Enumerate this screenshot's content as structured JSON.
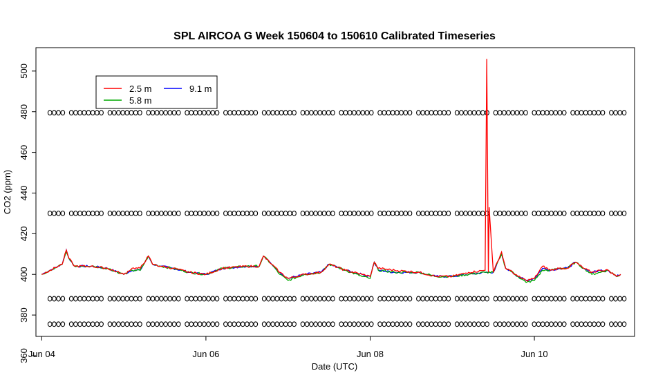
{
  "chart_data": {
    "type": "line",
    "title": "SPL AIRCOA G  Week 150604 to 150610  Calibrated Timeseries",
    "xlabel": "Date (UTC)",
    "ylabel": "CO2 (ppm)",
    "xlim": [
      -0.07,
      7.22
    ],
    "ylim": [
      369.5,
      511.5
    ],
    "x_ticks": [
      {
        "value": 0,
        "label": "Jun 04"
      },
      {
        "value": 2,
        "label": "Jun 06"
      },
      {
        "value": 4,
        "label": "Jun 08"
      },
      {
        "value": 6,
        "label": "Jun 10"
      }
    ],
    "y_ticks": [
      360,
      380,
      400,
      420,
      440,
      460,
      480,
      500
    ],
    "y_tick_labels": [
      "360",
      "380",
      "400",
      "420",
      "440",
      "460",
      "480",
      "500"
    ],
    "x_unit": "days since Jun 04 00:00 UTC",
    "legend": {
      "position": "top-left",
      "entries": [
        {
          "label": "2.5 m",
          "color": "#ff0000"
        },
        {
          "label": "5.8 m",
          "color": "#00aa00"
        },
        {
          "label": "9.1 m",
          "color": "#0000ff"
        }
      ]
    },
    "series": [
      {
        "name": "9.1 m",
        "color": "#0000ff",
        "x": [
          0,
          0.1,
          0.2,
          0.25,
          0.3,
          0.33,
          0.4,
          0.6,
          0.8,
          1.0,
          1.1,
          1.2,
          1.3,
          1.35,
          1.45,
          1.6,
          1.8,
          2.0,
          2.2,
          2.5,
          2.65,
          2.7,
          2.8,
          2.9,
          3.0,
          3.2,
          3.4,
          3.5,
          3.7,
          3.9,
          4.0,
          4.05,
          4.1,
          4.3,
          4.6,
          4.8,
          5.0,
          5.2,
          5.4,
          5.5,
          5.6,
          5.65,
          5.7,
          5.8,
          5.9,
          6.0,
          6.1,
          6.2,
          6.3,
          6.4,
          6.5,
          6.6,
          6.7,
          6.8,
          6.9,
          7.0,
          7.05
        ],
        "y": [
          400,
          402,
          404,
          405,
          412,
          408,
          404,
          404,
          403,
          400,
          402,
          402,
          409,
          405,
          404,
          403,
          401,
          400,
          403,
          404,
          404,
          409,
          405,
          401,
          398,
          400,
          401,
          405,
          402,
          400,
          399,
          406,
          402,
          401,
          401,
          399,
          399,
          400,
          401,
          401,
          410,
          403,
          402,
          399,
          397,
          398,
          403,
          402,
          403,
          403,
          406,
          403,
          401,
          402,
          402,
          399,
          400
        ]
      },
      {
        "name": "5.8 m",
        "color": "#00aa00",
        "x": [
          0,
          0.1,
          0.2,
          0.25,
          0.3,
          0.33,
          0.4,
          0.6,
          0.8,
          1.0,
          1.1,
          1.2,
          1.3,
          1.35,
          1.45,
          1.6,
          1.8,
          2.0,
          2.2,
          2.5,
          2.65,
          2.7,
          2.8,
          2.9,
          3.0,
          3.2,
          3.4,
          3.5,
          3.7,
          3.9,
          4.0,
          4.05,
          4.1,
          4.3,
          4.6,
          4.8,
          5.0,
          5.2,
          5.4,
          5.5,
          5.6,
          5.65,
          5.7,
          5.8,
          5.9,
          6.0,
          6.1,
          6.2,
          6.3,
          6.4,
          6.5,
          6.6,
          6.7,
          6.8,
          6.9,
          7.0,
          7.05
        ],
        "y": [
          400,
          402,
          404,
          405,
          411,
          408,
          404,
          404,
          403,
          400,
          402,
          402,
          409,
          405,
          404,
          403,
          401,
          400,
          403,
          404,
          404,
          409,
          405,
          400,
          397,
          400,
          401,
          405,
          402,
          399,
          398,
          406,
          402,
          401,
          401,
          399,
          399,
          400,
          401,
          401,
          410,
          403,
          402,
          399,
          396,
          397,
          402,
          402,
          403,
          403,
          406,
          403,
          400,
          401,
          402,
          399,
          400
        ]
      },
      {
        "name": "2.5 m",
        "color": "#ff0000",
        "x": [
          0,
          0.1,
          0.2,
          0.25,
          0.3,
          0.33,
          0.4,
          0.6,
          0.8,
          1.0,
          1.1,
          1.2,
          1.3,
          1.35,
          1.45,
          1.6,
          1.8,
          2.0,
          2.2,
          2.5,
          2.65,
          2.7,
          2.8,
          2.9,
          3.0,
          3.2,
          3.4,
          3.5,
          3.7,
          3.9,
          4.0,
          4.05,
          4.1,
          4.3,
          4.6,
          4.8,
          5.0,
          5.2,
          5.4,
          5.42,
          5.44,
          5.45,
          5.47,
          5.5,
          5.6,
          5.65,
          5.7,
          5.8,
          5.9,
          6.0,
          6.1,
          6.2,
          6.3,
          6.4,
          6.5,
          6.6,
          6.7,
          6.8,
          6.9,
          7.0,
          7.05
        ],
        "y": [
          400,
          402,
          404,
          405,
          412,
          408,
          404,
          404,
          403,
          400,
          403,
          403,
          409,
          405,
          404,
          403,
          401,
          400,
          403,
          404,
          404,
          409,
          405,
          401,
          398,
          400,
          401,
          405,
          402,
          400,
          399,
          406,
          403,
          402,
          401,
          399,
          399,
          401,
          402,
          506,
          401,
          433,
          420,
          401,
          411,
          403,
          402,
          399,
          397,
          398,
          404,
          402,
          403,
          403,
          406,
          403,
          401,
          402,
          402,
          399,
          400
        ]
      }
    ],
    "marker_rows": [
      {
        "y": 479.5,
        "marker": "o"
      },
      {
        "y": 430,
        "marker": "o"
      },
      {
        "y": 388,
        "marker": "o"
      },
      {
        "y": 375.5,
        "marker": "o"
      }
    ]
  }
}
